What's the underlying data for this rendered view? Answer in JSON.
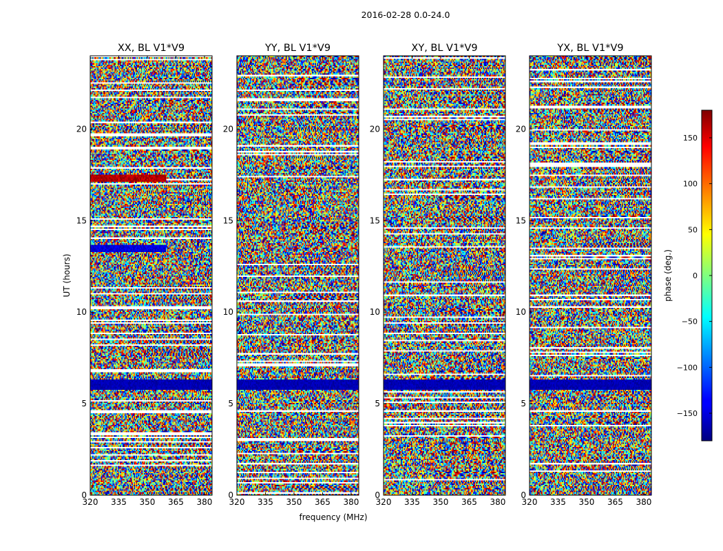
{
  "chart_data": {
    "type": "heatmap",
    "suptitle": "2016-02-28 0.0-24.0",
    "xlabel": "frequency (MHz)",
    "ylabel": "UT (hours)",
    "xlim": [
      320,
      384
    ],
    "ylim": [
      0,
      24
    ],
    "xticks": [
      "320",
      "335",
      "350",
      "365",
      "380"
    ],
    "yticks": [
      "0",
      "5",
      "10",
      "15",
      "20"
    ],
    "panels": [
      {
        "title": "XX, BL V1*V9"
      },
      {
        "title": "YY, BL V1*V9"
      },
      {
        "title": "XY, BL V1*V9"
      },
      {
        "title": "YX, BL V1*V9"
      }
    ],
    "colorbar": {
      "label": "phase (deg.)",
      "range": [
        -180,
        180
      ],
      "colormap": "jet",
      "ticks": [
        "150",
        "100",
        "50",
        "0",
        "−50",
        "−100",
        "−150"
      ],
      "tick_values": [
        150,
        100,
        50,
        0,
        -50,
        -100,
        -150
      ]
    },
    "features": {
      "coherent_dark_blue_band_hours": [
        5.8,
        6.3
      ],
      "xx_dark_red_band_hours": [
        17.1,
        17.5
      ],
      "xx_dark_blue_band_hours": [
        13.3,
        13.7
      ]
    }
  }
}
